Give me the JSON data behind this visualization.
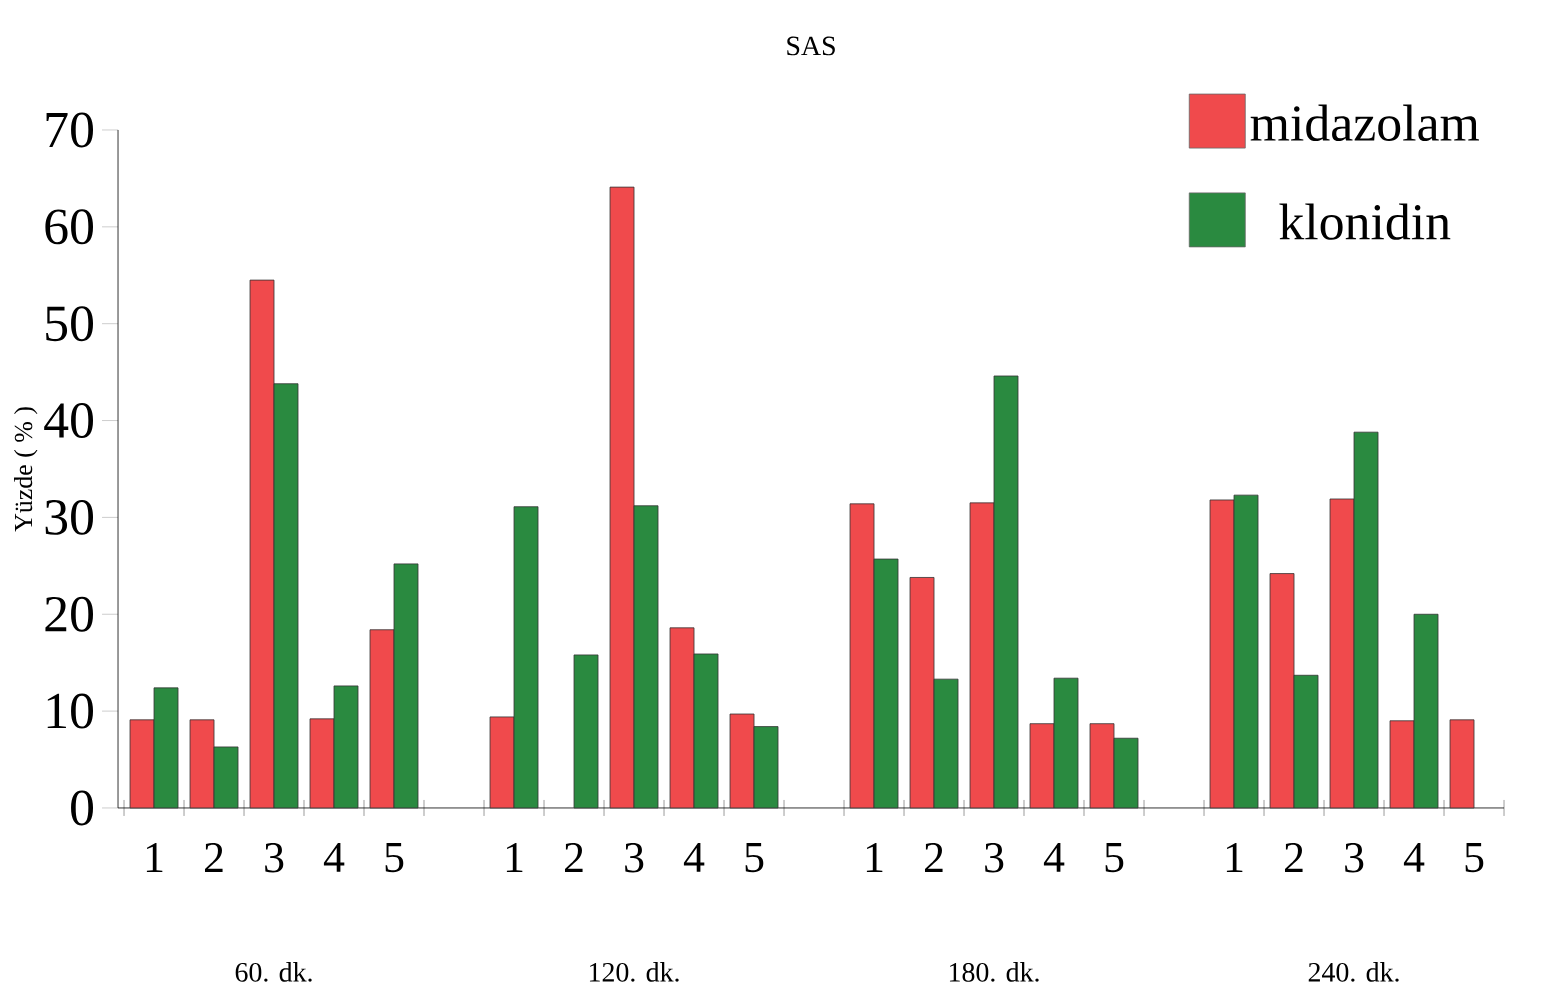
{
  "chart_data": {
    "type": "bar",
    "title": "SAS",
    "ylabel": "Yüzde ( % )",
    "categories": [
      "1",
      "2",
      "3",
      "4",
      "5",
      null,
      "1",
      "2",
      "3",
      "4",
      "5",
      null,
      "1",
      "2",
      "3",
      "4",
      "5",
      null,
      "1",
      "2",
      "3",
      "4",
      "5"
    ],
    "series": [
      {
        "name": "midazolam",
        "color": "#f04a4c",
        "values": [
          9.1,
          9.1,
          54.5,
          9.2,
          18.4,
          null,
          9.4,
          null,
          64.1,
          18.6,
          9.7,
          null,
          31.4,
          23.8,
          31.5,
          8.7,
          8.7,
          null,
          31.8,
          24.2,
          31.9,
          9.0,
          9.1
        ]
      },
      {
        "name": "klonidin",
        "color": "#2a8a40",
        "values": [
          12.4,
          6.3,
          43.8,
          12.6,
          25.2,
          null,
          31.1,
          15.8,
          31.2,
          15.9,
          8.4,
          null,
          25.7,
          13.3,
          44.6,
          13.4,
          7.2,
          null,
          32.3,
          13.7,
          38.8,
          20.0,
          null
        ]
      }
    ],
    "annotations": [
      "60. dk.",
      "120. dk.",
      "180. dk.",
      "240. dk."
    ],
    "ylim": [
      0,
      70
    ],
    "yticks": [
      0,
      10,
      20,
      30,
      40,
      50,
      60,
      70
    ],
    "legend": "top right"
  }
}
